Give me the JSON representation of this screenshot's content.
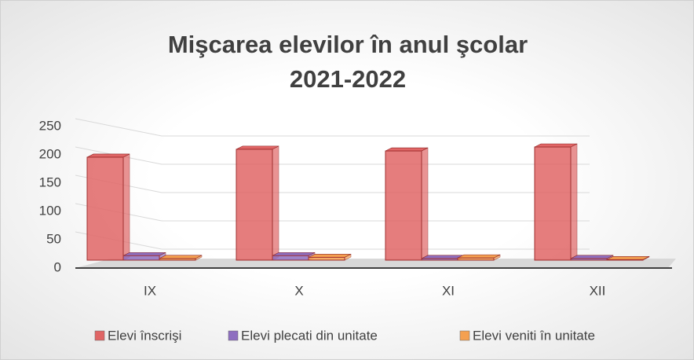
{
  "chart_data": {
    "type": "bar",
    "title": "Mişcarea elevilor în anul şcolar 2021-2022",
    "categories": [
      "IX",
      "X",
      "XI",
      "XII"
    ],
    "series": [
      {
        "name": "Elevi înscrişi",
        "color": "#e06666",
        "values": [
          182,
          196,
          193,
          200
        ]
      },
      {
        "name": "Elevi plecati din unitate",
        "color": "#8e6fc0",
        "values": [
          8,
          8,
          3,
          3
        ]
      },
      {
        "name": "Elevi veniti în unitate",
        "color": "#f4a050",
        "values": [
          3,
          5,
          4,
          1
        ]
      }
    ],
    "ylim": [
      0,
      250
    ],
    "yticks": [
      0,
      50,
      100,
      150,
      200,
      250
    ],
    "grid": true
  }
}
